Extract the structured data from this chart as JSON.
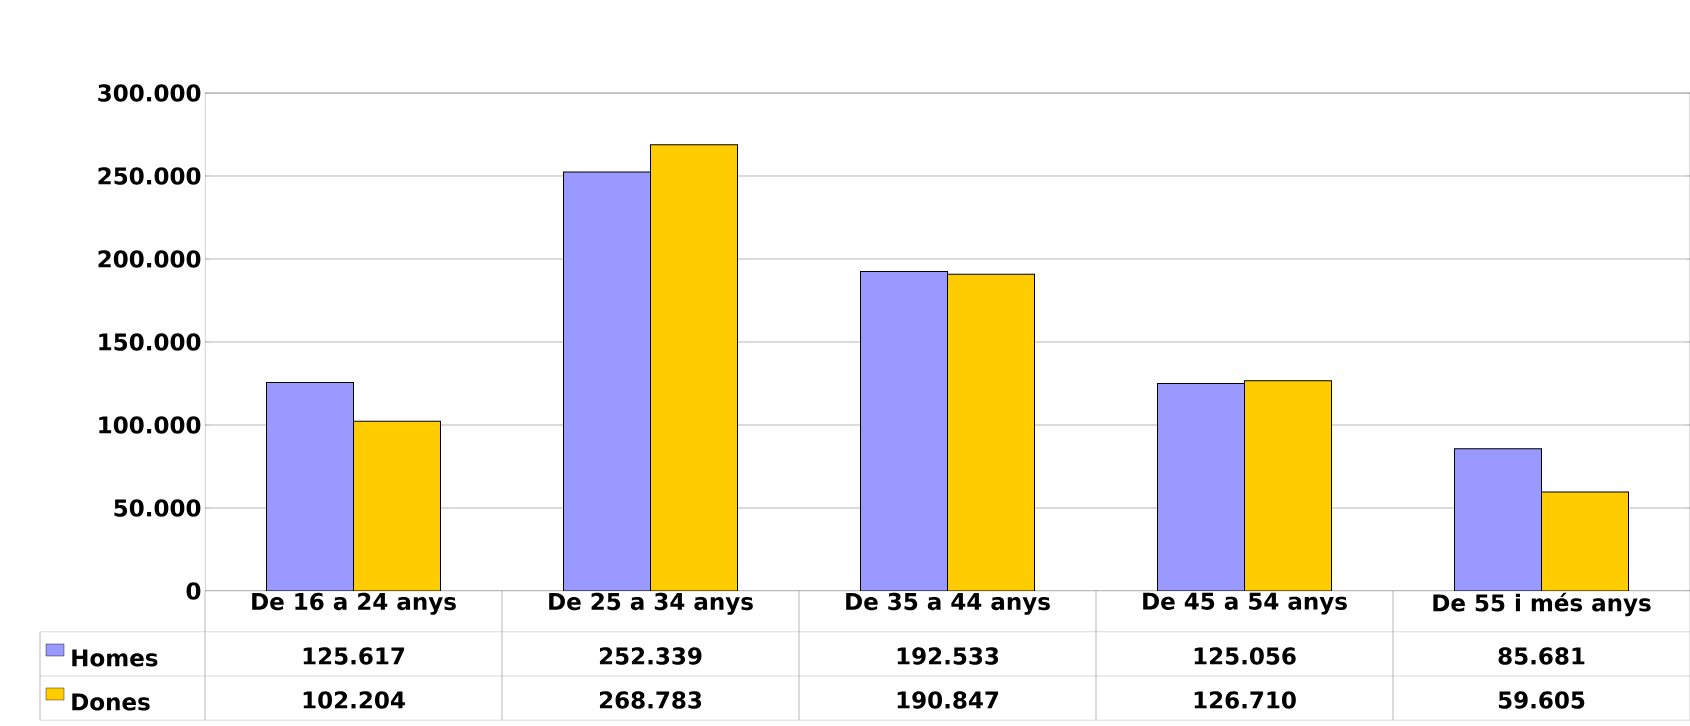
{
  "chart_data": {
    "type": "bar",
    "categories": [
      "De 16 a 24 anys",
      "De 25 a 34 anys",
      "De 35 a 44 anys",
      "De 45 a 54 anys",
      "De 55 i més anys"
    ],
    "series": [
      {
        "name": "Homes",
        "color": "#9999ff",
        "values": [
          125617,
          252339,
          192533,
          125056,
          85681
        ],
        "value_labels": [
          "125.617",
          "252.339",
          "192.533",
          "125.056",
          "85.681"
        ]
      },
      {
        "name": "Dones",
        "color": "#ffcc00",
        "values": [
          102204,
          268783,
          190847,
          126710,
          59605
        ],
        "value_labels": [
          "102.204",
          "268.783",
          "190.847",
          "126.710",
          "59.605"
        ]
      }
    ],
    "ylim": [
      0,
      300000
    ],
    "yticks": [
      {
        "value": 0,
        "label": "0"
      },
      {
        "value": 50000,
        "label": "50.000"
      },
      {
        "value": 100000,
        "label": "100.000"
      },
      {
        "value": 150000,
        "label": "150.000"
      },
      {
        "value": 200000,
        "label": "200.000"
      },
      {
        "value": 250000,
        "label": "250.000"
      },
      {
        "value": 300000,
        "label": "300.000"
      }
    ],
    "grid": "y",
    "legend": "bottom"
  }
}
